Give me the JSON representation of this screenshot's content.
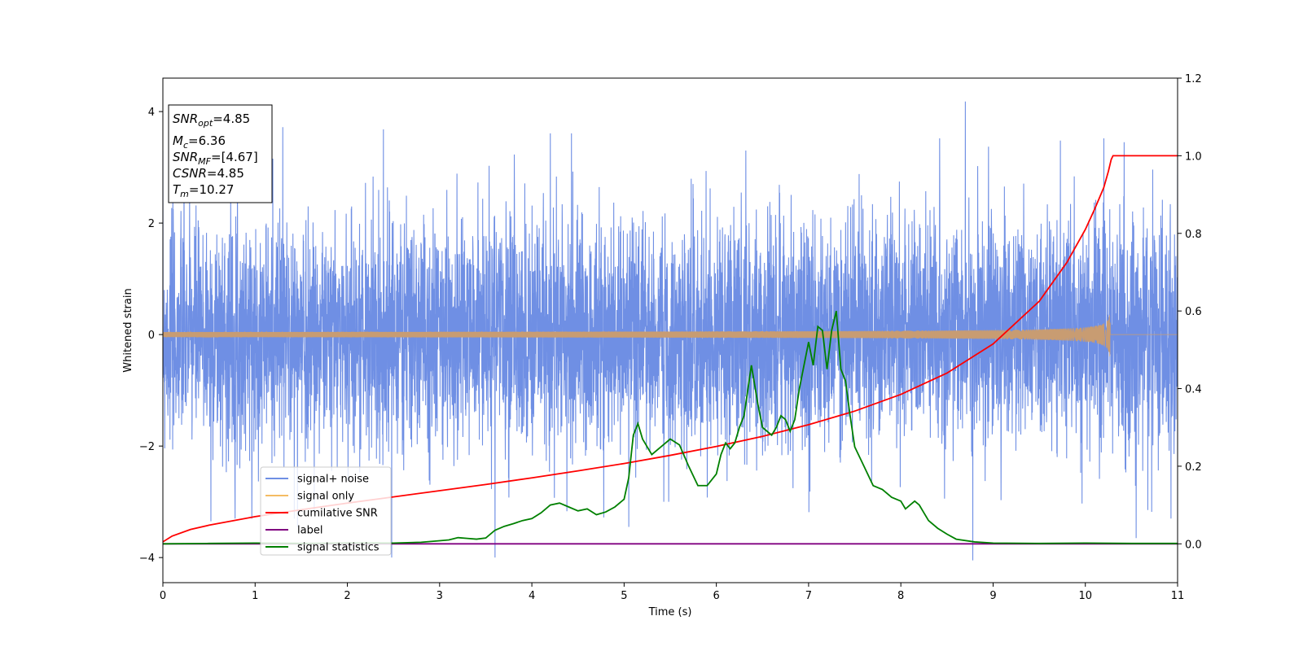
{
  "chart_data": {
    "type": "line",
    "xlabel": "Time (s)",
    "ylabel": "Whitened strain",
    "xlim": [
      0,
      11
    ],
    "ylim": [
      -4.45,
      4.6
    ],
    "y2lim": [
      -0.1,
      1.2
    ],
    "xticks": [
      0,
      1,
      2,
      3,
      4,
      5,
      6,
      7,
      8,
      9,
      10,
      11
    ],
    "yticks": [
      -4,
      -2,
      0,
      2,
      4
    ],
    "y2ticks": [
      "0.0",
      "0.2",
      "0.4",
      "0.6",
      "0.8",
      "1.0",
      "1.2"
    ],
    "grid": false,
    "legend_position": "lower-left",
    "info_box": {
      "snr_opt": {
        "base": "SNR",
        "sub": "opt",
        "value": "=4.85"
      },
      "mc": {
        "base": "M",
        "sub": "c",
        "value": "=6.36"
      },
      "snr_mf": {
        "base": "SNR",
        "sub": "MF",
        "value": "=[4.67]"
      },
      "csnr": {
        "base": "CSNR",
        "sub": "",
        "value": "=4.85"
      },
      "tm": {
        "base": "T",
        "sub": "m",
        "value": "=10.27"
      }
    },
    "series": [
      {
        "name": "signal+ noise",
        "axis": "left",
        "color": "#6f8fe4",
        "description_type": "noise",
        "noise_sigma": 1.0,
        "x_range": [
          0,
          11
        ],
        "spikes": [
          [
            0.52,
            -3.35
          ],
          [
            1.3,
            3.72
          ],
          [
            1.46,
            -3.45
          ],
          [
            2.39,
            3.68
          ],
          [
            2.48,
            -4.0
          ],
          [
            3.6,
            -4.0
          ],
          [
            3.81,
            3.23
          ],
          [
            4.2,
            3.61
          ],
          [
            4.43,
            3.61
          ],
          [
            4.78,
            -3.28
          ],
          [
            5.05,
            -3.45
          ],
          [
            5.43,
            -3.0
          ],
          [
            8.42,
            3.52
          ],
          [
            8.7,
            4.18
          ],
          [
            8.78,
            -4.05
          ],
          [
            8.95,
            3.37
          ],
          [
            9.73,
            3.48
          ],
          [
            10.2,
            3.52
          ],
          [
            10.42,
            3.45
          ],
          [
            10.55,
            -3.65
          ],
          [
            10.72,
            -3.18
          ]
        ]
      },
      {
        "name": "signal only",
        "axis": "left",
        "color": "#f4bc63",
        "description_type": "chirp",
        "t_merger": 10.27,
        "peak_amplitude": 0.5
      },
      {
        "name": "cumilative SNR",
        "axis": "right",
        "color": "#ff0000",
        "x": [
          0,
          0.1,
          0.3,
          0.5,
          1.0,
          1.5,
          2.0,
          2.5,
          3.0,
          3.5,
          4.0,
          4.5,
          5.0,
          5.5,
          6.0,
          6.5,
          7.0,
          7.5,
          8.0,
          8.5,
          9.0,
          9.5,
          9.8,
          10.0,
          10.1,
          10.2,
          10.25,
          10.28,
          10.3,
          11.0
        ],
        "y": [
          0.005,
          0.02,
          0.037,
          0.048,
          0.07,
          0.088,
          0.105,
          0.121,
          0.137,
          0.153,
          0.17,
          0.188,
          0.207,
          0.228,
          0.251,
          0.277,
          0.307,
          0.342,
          0.385,
          0.44,
          0.515,
          0.625,
          0.725,
          0.81,
          0.862,
          0.918,
          0.96,
          0.99,
          1.0,
          1.0
        ]
      },
      {
        "name": "label",
        "axis": "right",
        "color": "#800080",
        "x": [
          0,
          11
        ],
        "y": [
          0,
          0
        ]
      },
      {
        "name": "signal statistics",
        "axis": "right",
        "color": "#008000",
        "x": [
          0,
          0.5,
          1.0,
          1.5,
          2.0,
          2.5,
          2.8,
          3.0,
          3.1,
          3.2,
          3.3,
          3.4,
          3.5,
          3.6,
          3.7,
          3.8,
          3.9,
          4.0,
          4.1,
          4.2,
          4.3,
          4.4,
          4.5,
          4.6,
          4.7,
          4.8,
          4.9,
          5.0,
          5.05,
          5.1,
          5.15,
          5.2,
          5.3,
          5.4,
          5.5,
          5.6,
          5.7,
          5.8,
          5.9,
          6.0,
          6.05,
          6.1,
          6.15,
          6.2,
          6.25,
          6.3,
          6.38,
          6.45,
          6.5,
          6.55,
          6.6,
          6.65,
          6.7,
          6.75,
          6.8,
          6.85,
          6.9,
          6.95,
          7.0,
          7.05,
          7.1,
          7.15,
          7.2,
          7.25,
          7.3,
          7.35,
          7.4,
          7.45,
          7.5,
          7.6,
          7.7,
          7.8,
          7.9,
          8.0,
          8.05,
          8.1,
          8.15,
          8.2,
          8.25,
          8.3,
          8.4,
          8.5,
          8.6,
          8.8,
          9.0,
          9.5,
          10.0,
          10.5,
          11.0
        ],
        "y": [
          0,
          0.001,
          0.002,
          0.001,
          0.002,
          0.002,
          0.004,
          0.008,
          0.01,
          0.016,
          0.014,
          0.012,
          0.015,
          0.035,
          0.045,
          0.052,
          0.06,
          0.065,
          0.08,
          0.1,
          0.105,
          0.095,
          0.085,
          0.09,
          0.075,
          0.082,
          0.095,
          0.115,
          0.17,
          0.28,
          0.31,
          0.27,
          0.23,
          0.25,
          0.27,
          0.255,
          0.2,
          0.15,
          0.15,
          0.18,
          0.23,
          0.26,
          0.245,
          0.26,
          0.3,
          0.33,
          0.46,
          0.36,
          0.3,
          0.29,
          0.28,
          0.3,
          0.33,
          0.32,
          0.29,
          0.32,
          0.4,
          0.46,
          0.52,
          0.46,
          0.56,
          0.55,
          0.45,
          0.55,
          0.6,
          0.45,
          0.42,
          0.33,
          0.25,
          0.2,
          0.15,
          0.14,
          0.12,
          0.11,
          0.09,
          0.1,
          0.11,
          0.1,
          0.08,
          0.06,
          0.04,
          0.025,
          0.012,
          0.005,
          0.002,
          0.001,
          0.002,
          0.001,
          0.001
        ]
      }
    ]
  }
}
